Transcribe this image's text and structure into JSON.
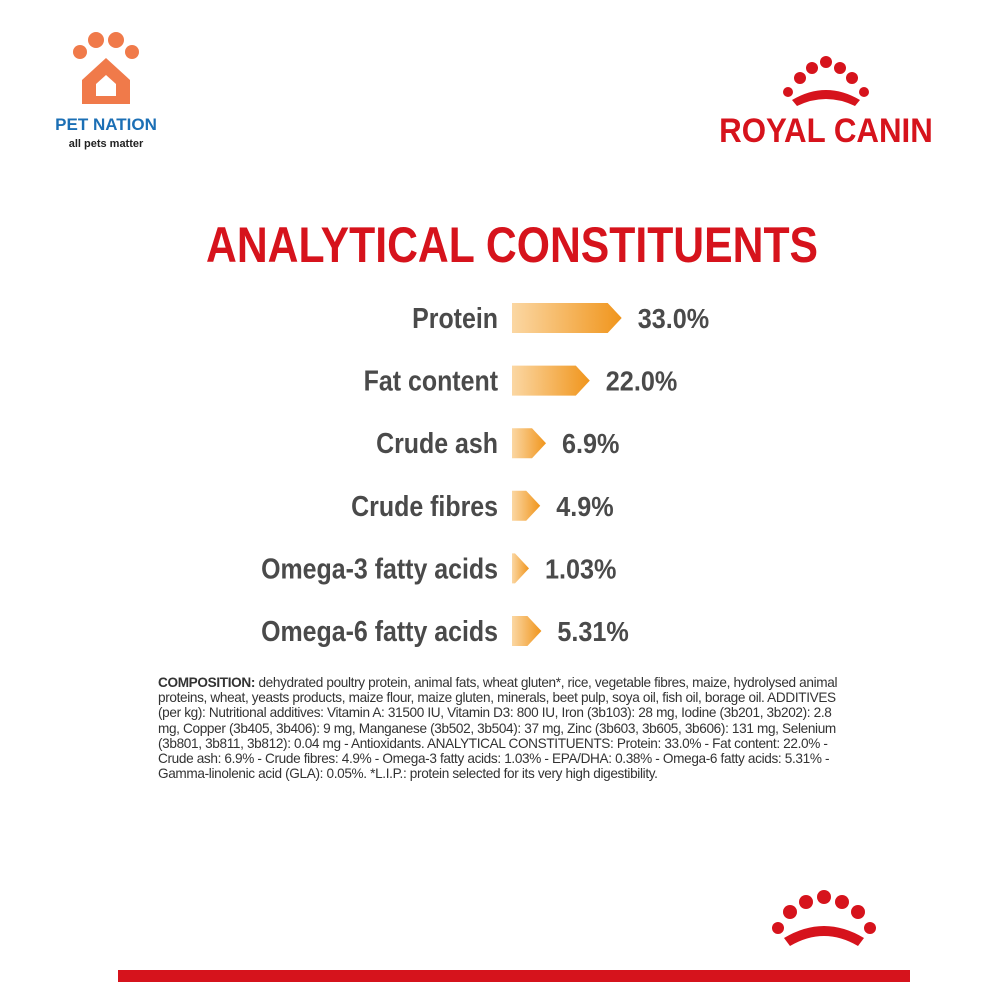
{
  "header": {
    "pet_nation": {
      "name": "PET NATION",
      "tagline": "all pets matter"
    },
    "brand": "ROYAL CANIN"
  },
  "chart_data": {
    "type": "bar",
    "orientation": "horizontal",
    "title": "ANALYTICAL CONSTITUENTS",
    "categories": [
      "Protein",
      "Fat content",
      "Crude ash",
      "Crude fibres",
      "Omega-3 fatty acids",
      "Omega-6 fatty acids"
    ],
    "values": [
      33.0,
      22.0,
      6.9,
      4.9,
      1.03,
      5.31
    ],
    "value_labels": [
      "33.0%",
      "22.0%",
      "6.9%",
      "4.9%",
      "1.03%",
      "5.31%"
    ],
    "color": "#f0951c"
  },
  "composition": {
    "label": "COMPOSITION:",
    "text": "dehydrated poultry protein, animal fats, wheat gluten*, rice, vegetable fibres, maize, hydrolysed animal proteins, wheat, yeasts products, maize flour, maize gluten, minerals, beet pulp, soya oil, fish oil, borage oil. ADDITIVES (per kg): Nutritional additives: Vitamin A: 31500 IU, Vitamin D3: 800 IU, Iron (3b103): 28 mg, Iodine (3b201, 3b202): 2.8 mg, Copper (3b405, 3b406): 9 mg, Manganese (3b502, 3b504): 37 mg, Zinc (3b603, 3b605, 3b606): 131 mg, Selenium (3b801, 3b811, 3b812): 0.04 mg - Antioxidants. ANALYTICAL CONSTITUENTS: Protein: 33.0% - Fat content: 22.0% - Crude ash: 6.9% - Crude fibres: 4.9% - Omega-3 fatty acids: 1.03% - EPA/DHA: 0.38% - Omega-6 fatty acids: 5.31% - Gamma-linolenic acid (GLA): 0.05%. *L.I.P.: protein selected for its very high digestibility."
  }
}
